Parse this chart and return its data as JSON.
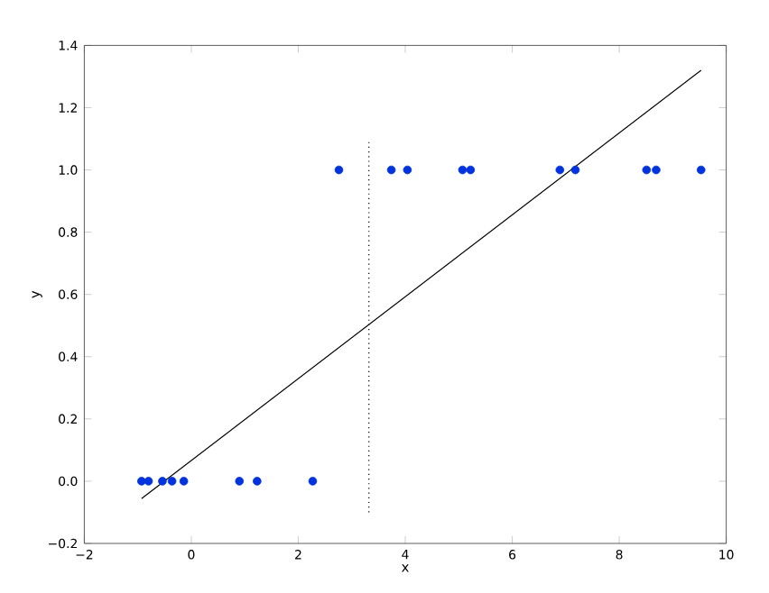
{
  "chart_data": {
    "type": "scatter",
    "xlabel": "x",
    "ylabel": "y",
    "xlim": [
      -2,
      10
    ],
    "ylim": [
      -0.2,
      1.4
    ],
    "xticks": [
      {
        "value": -2,
        "label": "−2"
      },
      0,
      2,
      4,
      6,
      8,
      10
    ],
    "yticks": [
      {
        "value": -0.2,
        "label": "−0.2"
      },
      {
        "value": 0,
        "label": "0.0"
      },
      0.2,
      0.4,
      0.6,
      0.8,
      {
        "value": 1,
        "label": "1.0"
      },
      1.2,
      1.4
    ],
    "grid": false,
    "series": [
      {
        "type": "scatter",
        "color": "#0033dd",
        "marker": "circle",
        "x": [
          -0.93,
          -0.8,
          -0.54,
          -0.36,
          -0.14,
          0.9,
          1.23,
          2.27,
          2.76,
          3.74,
          4.04,
          5.07,
          5.22,
          6.89,
          7.18,
          8.51,
          8.69,
          9.53
        ],
        "values": [
          0,
          0,
          0,
          0,
          0,
          0,
          0,
          0,
          1,
          1,
          1,
          1,
          1,
          1,
          1,
          1,
          1,
          1
        ]
      },
      {
        "type": "line",
        "color": "#000000",
        "line_style": "solid",
        "x": [
          -0.93,
          9.53
        ],
        "values": [
          -0.056,
          1.32
        ]
      },
      {
        "type": "line",
        "color": "#000000",
        "line_style": "dotted",
        "x": [
          3.32,
          3.32
        ],
        "values": [
          -0.1,
          1.1
        ]
      }
    ]
  }
}
